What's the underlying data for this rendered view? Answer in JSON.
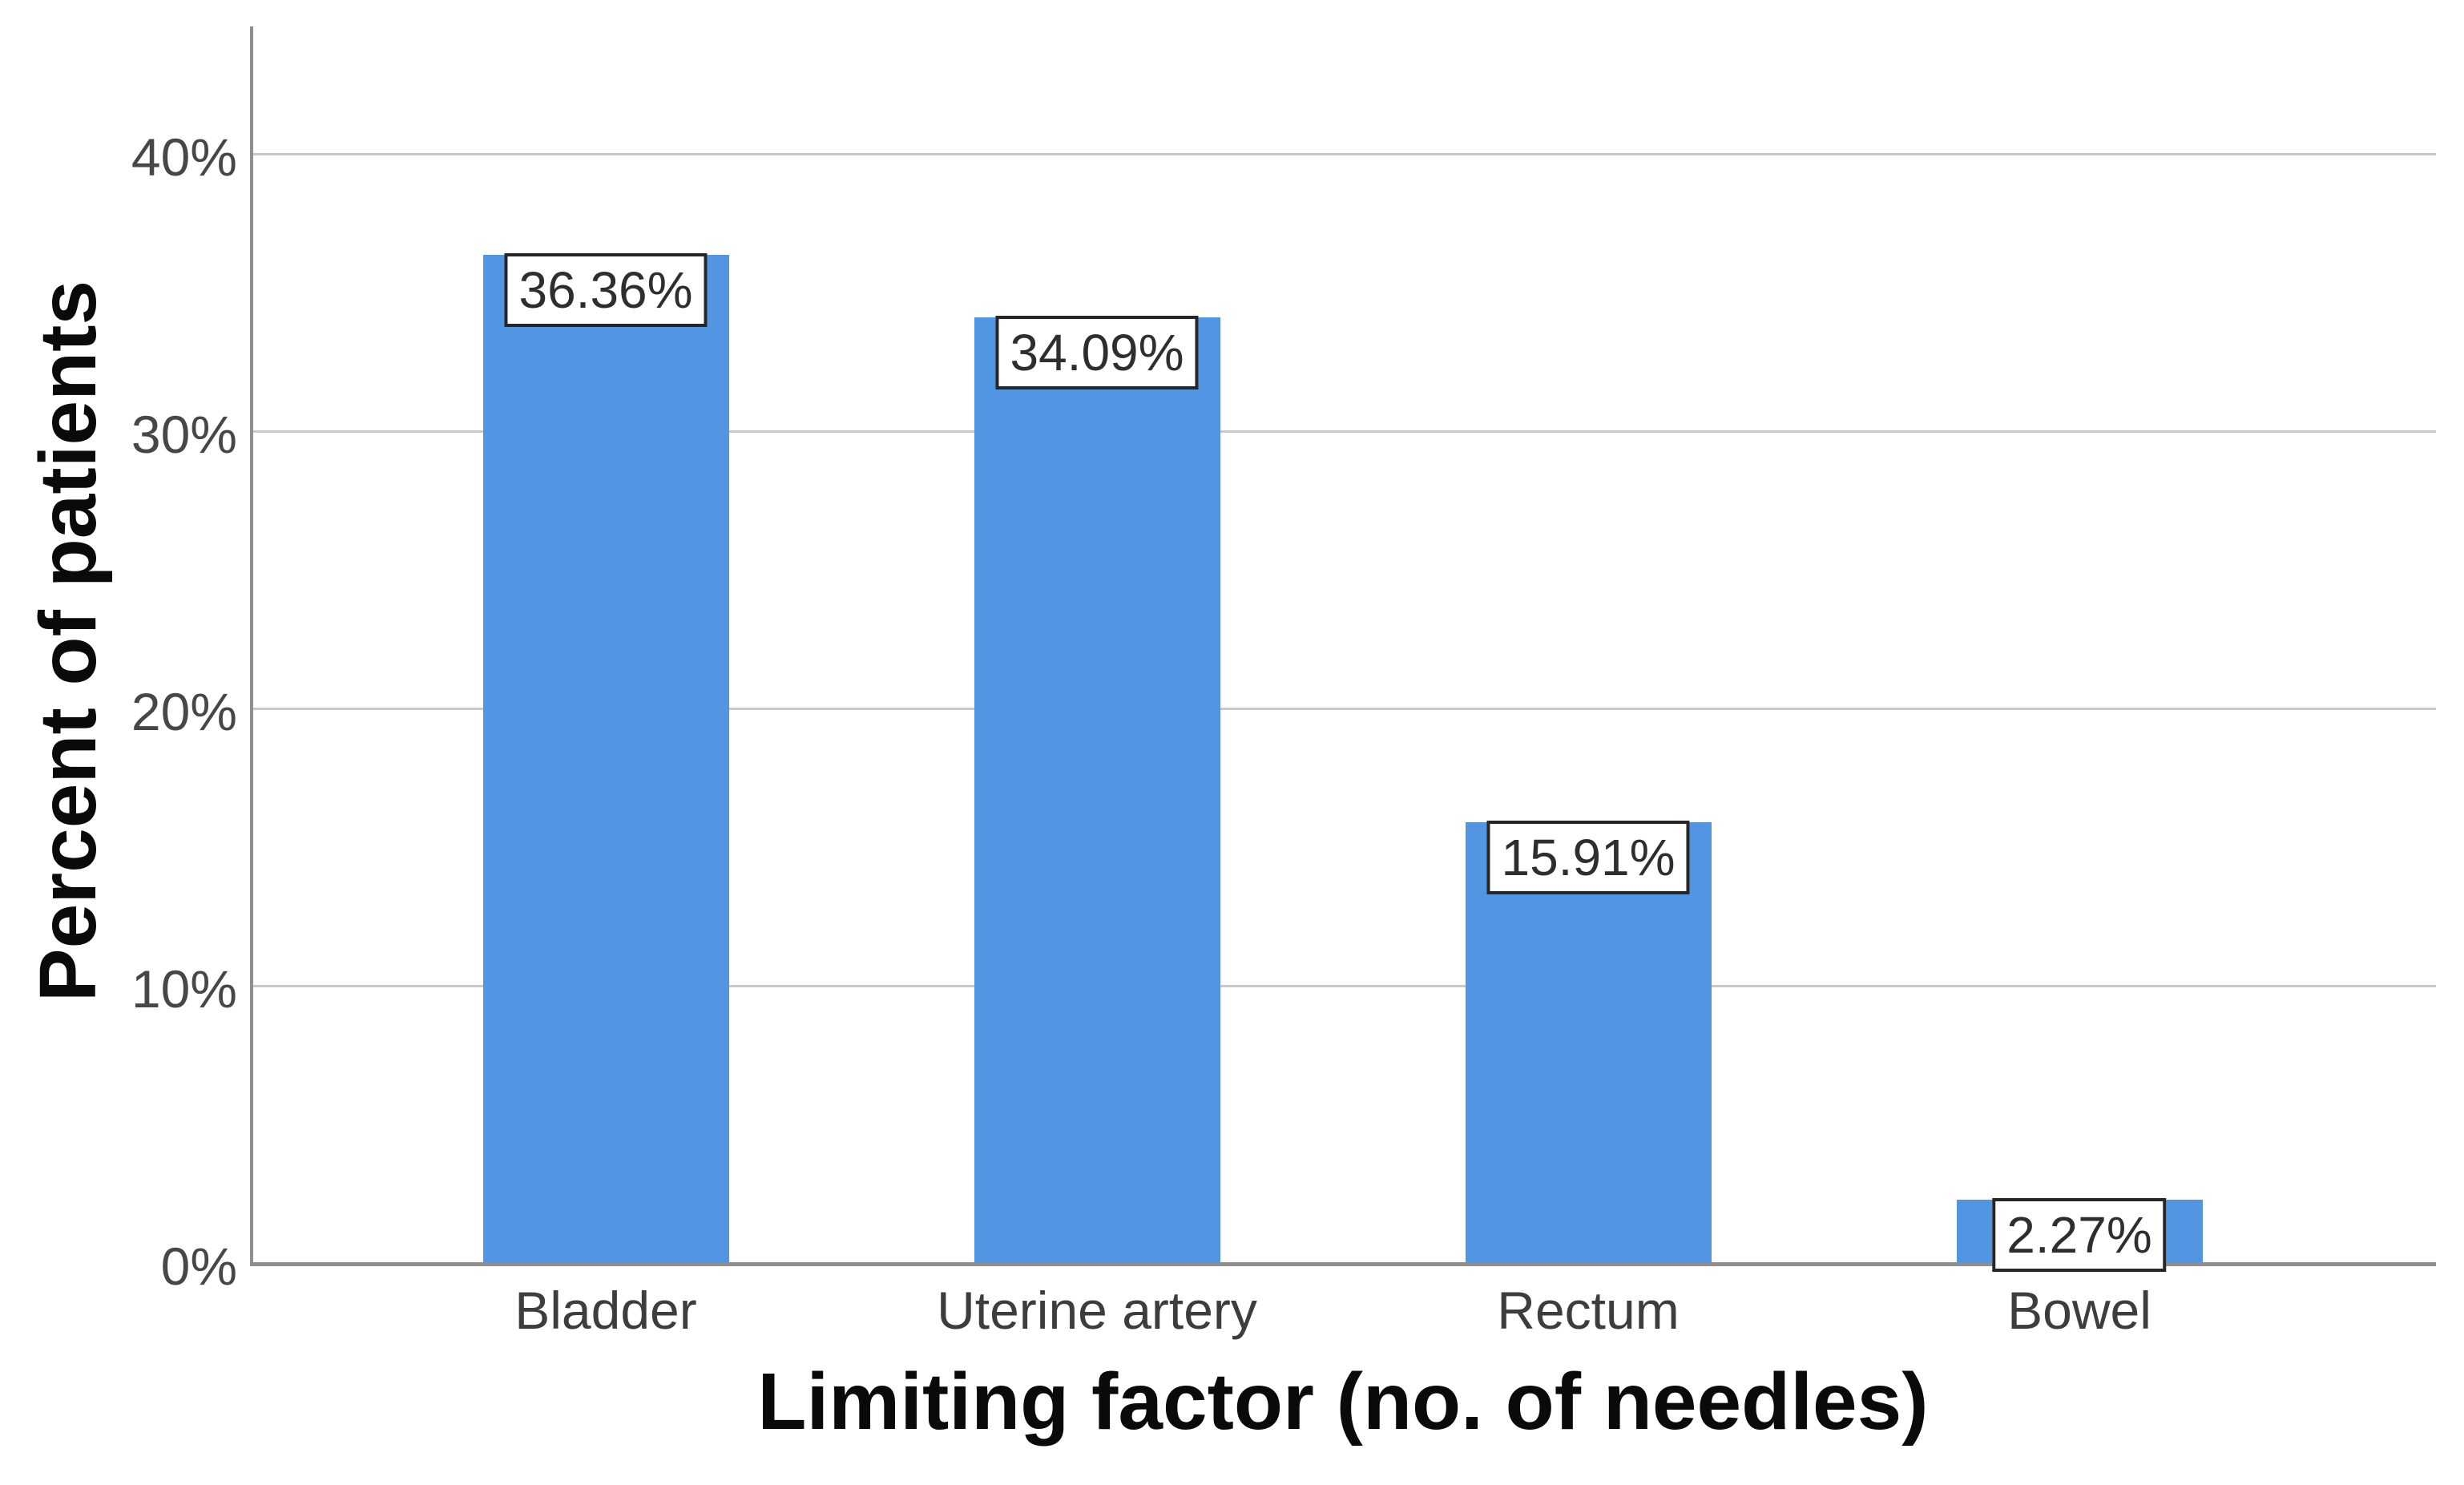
{
  "chart_data": {
    "type": "bar",
    "title": "",
    "categories": [
      "Bladder",
      "Uterine artery",
      "Rectum",
      "Bowel"
    ],
    "values": [
      36.36,
      34.09,
      15.91,
      2.27
    ],
    "data_labels": [
      "36.36%",
      "34.09%",
      "15.91%",
      "2.27%"
    ],
    "xlabel": "Limiting factor (no. of needles)",
    "ylabel": "Percent of patients",
    "y_ticks": [
      {
        "label": "0%",
        "value": 0
      },
      {
        "label": "10%",
        "value": 10
      },
      {
        "label": "20%",
        "value": 20
      },
      {
        "label": "30%",
        "value": 30
      },
      {
        "label": "40%",
        "value": 40
      }
    ],
    "ylim": [
      0,
      44.6
    ],
    "grid": "horizontal-only",
    "legend": "none",
    "colors": {
      "bar_fill": "#5295E2",
      "gridline": "#C9C9C9",
      "axis_line": "#8E8E8E",
      "tick_text": "#474747",
      "category_text": "#3D3D3D",
      "data_label_text": "#2E2E2E",
      "data_label_border": "#262626",
      "data_label_bg": "#FFFFFF"
    }
  }
}
